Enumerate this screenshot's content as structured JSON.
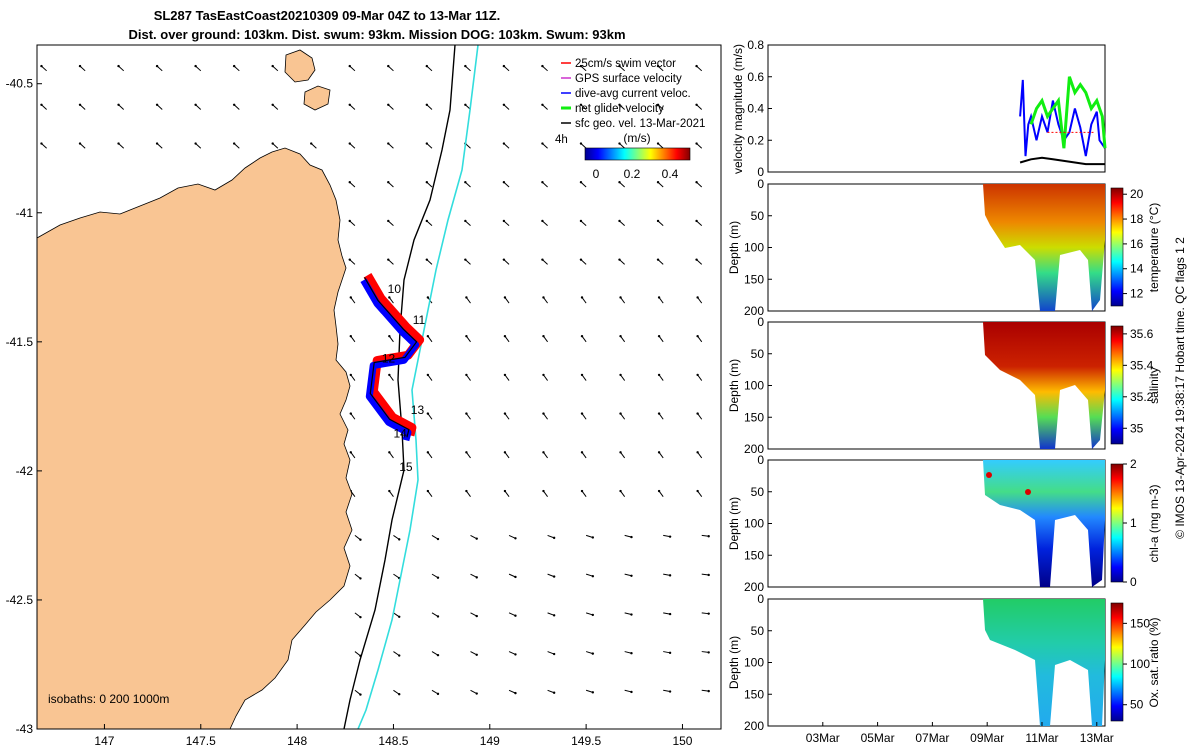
{
  "title": {
    "line1": "SL287 TasEastCoast20210309 09-Mar 04Z to 13-Mar 11Z.",
    "line2": "Dist. over ground: 103km. Dist. swum: 93km. Mission DOG: 103km. Swum: 93km"
  },
  "colors": {
    "land": "#f9c593",
    "glider_blue": "#0000ff",
    "glider_red": "#ff0000",
    "isobath_200": "#000000",
    "isobath_1000": "#33dddd",
    "net_green": "#11ee11",
    "magenta": "#cc33cc",
    "frame": "#000000"
  },
  "chart_data": [
    {
      "type": "map",
      "name": "glider-track-map",
      "title": "SL287 TasEastCoast20210309 09-Mar 04Z to 13-Mar 11Z.",
      "xlim": [
        146.65,
        150.2
      ],
      "ylim": [
        -43.0,
        -40.35
      ],
      "xticks": [
        147,
        147.5,
        148,
        148.5,
        149,
        149.5,
        150
      ],
      "xtick_labels": [
        "147",
        "147.5",
        "148",
        "148.5",
        "149",
        "149.5",
        "150"
      ],
      "yticks": [
        -40.5,
        -41,
        -41.5,
        -42,
        -42.5,
        -43
      ],
      "ytick_labels": [
        "-40.5",
        "-41",
        "-41.5",
        "-42",
        "-42.5",
        "-43"
      ],
      "legend": {
        "placement": "top-right",
        "entries": [
          {
            "label": "25cm/s swim vector",
            "color": "#ff0000"
          },
          {
            "label": "GPS surface velocity",
            "color": "#cc33cc"
          },
          {
            "label": "dive-avg current veloc.",
            "color": "#0000ff"
          },
          {
            "label": "net glider velocity",
            "color": "#11ee11"
          },
          {
            "label": "sfc geo. vel. 13-Mar-2021",
            "color": "#000000"
          }
        ],
        "colorbar_note": "4h",
        "colorbar_unit": "(m/s)",
        "colorbar_ticks": [
          "0",
          "0.2",
          "0.4"
        ],
        "colorbar_range": [
          0,
          0.55
        ]
      },
      "isobaths_label": "isobaths: 0   200  1000m",
      "track": [
        [
          148.35,
          -41.25
        ],
        [
          148.42,
          -41.34
        ],
        [
          148.55,
          -41.45
        ],
        [
          148.62,
          -41.5
        ],
        [
          148.56,
          -41.56
        ],
        [
          148.4,
          -41.58
        ],
        [
          148.38,
          -41.7
        ],
        [
          148.48,
          -41.8
        ],
        [
          148.58,
          -41.84
        ],
        [
          148.57,
          -41.87
        ]
      ],
      "track_labels": [
        {
          "text": "10",
          "lon": 148.47,
          "lat": -41.31
        },
        {
          "text": "11",
          "lon": 148.6,
          "lat": -41.43
        },
        {
          "text": "12",
          "lon": 148.44,
          "lat": -41.58
        },
        {
          "text": "13",
          "lon": 148.59,
          "lat": -41.78
        },
        {
          "text": "14",
          "lon": 148.5,
          "lat": -41.87
        },
        {
          "text": "15",
          "lon": 148.53,
          "lat": -42.0
        }
      ]
    },
    {
      "type": "line",
      "name": "velocity-magnitude",
      "ylabel": "velocity magnitude (m/s)",
      "ylim": [
        0,
        0.8
      ],
      "yticks": [
        0,
        0.2,
        0.4,
        0.6,
        0.8
      ],
      "ytick_labels": [
        "0",
        "0.2",
        "0.4",
        "0.6",
        "0.8"
      ],
      "xlim": [
        0,
        12.3
      ],
      "series": [
        {
          "name": "dive-avg current veloc.",
          "color": "#0000ff",
          "x": [
            9.2,
            9.3,
            9.4,
            9.5,
            9.6,
            9.8,
            10.0,
            10.2,
            10.4,
            10.6,
            10.8,
            11.0,
            11.2,
            11.4,
            11.6,
            11.8,
            12.0,
            12.1,
            12.3
          ],
          "y": [
            0.35,
            0.58,
            0.1,
            0.3,
            0.35,
            0.2,
            0.35,
            0.25,
            0.45,
            0.3,
            0.2,
            0.25,
            0.4,
            0.28,
            0.1,
            0.3,
            0.38,
            0.2,
            0.15
          ]
        },
        {
          "name": "net glider velocity",
          "color": "#11ee11",
          "x": [
            9.6,
            9.8,
            10.0,
            10.2,
            10.4,
            10.6,
            10.8,
            11.0,
            11.2,
            11.4,
            11.6,
            11.8,
            12.0,
            12.2,
            12.3
          ],
          "y": [
            0.3,
            0.4,
            0.45,
            0.35,
            0.4,
            0.45,
            0.15,
            0.6,
            0.5,
            0.55,
            0.5,
            0.4,
            0.45,
            0.35,
            0.15
          ]
        },
        {
          "name": "sfc geo. vel.",
          "color": "#000000",
          "x": [
            9.2,
            9.6,
            10.0,
            10.4,
            10.8,
            11.2,
            11.6,
            12.0,
            12.3
          ],
          "y": [
            0.06,
            0.08,
            0.09,
            0.08,
            0.07,
            0.06,
            0.05,
            0.05,
            0.05
          ]
        }
      ]
    },
    {
      "type": "heatmap",
      "name": "temperature-section",
      "ylabel": "Depth (m)",
      "ylim": [
        200,
        0
      ],
      "yticks": [
        0,
        50,
        100,
        150,
        200
      ],
      "cbar_label": "temperature (°C)",
      "cbar_range": [
        11,
        20.5
      ],
      "cbar_ticks": [
        "12",
        "14",
        "16",
        "18",
        "20"
      ]
    },
    {
      "type": "heatmap",
      "name": "salinity-section",
      "ylabel": "Depth (m)",
      "ylim": [
        200,
        0
      ],
      "yticks": [
        0,
        50,
        100,
        150,
        200
      ],
      "cbar_label": "salinity",
      "cbar_range": [
        34.9,
        35.65
      ],
      "cbar_ticks": [
        "35",
        "35.2",
        "35.4",
        "35.6"
      ]
    },
    {
      "type": "heatmap",
      "name": "chla-section",
      "ylabel": "Depth (m)",
      "ylim": [
        200,
        0
      ],
      "yticks": [
        0,
        50,
        100,
        150,
        200
      ],
      "cbar_label": "chl-a (mg m-3)",
      "cbar_range": [
        0,
        2
      ],
      "cbar_ticks": [
        "0",
        "1",
        "2"
      ]
    },
    {
      "type": "heatmap",
      "name": "oxygen-section",
      "ylabel": "Depth (m)",
      "ylim": [
        200,
        0
      ],
      "yticks": [
        0,
        50,
        100,
        150,
        200
      ],
      "cbar_label": "Ox. sat. ratio (%)",
      "cbar_range": [
        30,
        175
      ],
      "cbar_ticks": [
        "50",
        "100",
        "150"
      ],
      "xticks": [
        2,
        4,
        6,
        8,
        10,
        12
      ],
      "xtick_labels": [
        "03Mar",
        "05Mar",
        "07Mar",
        "09Mar",
        "11Mar",
        "13Mar"
      ]
    }
  ],
  "credit": "© IMOS 13-Apr-2024 19:38:17 Hobart time. QC flags 1  2"
}
